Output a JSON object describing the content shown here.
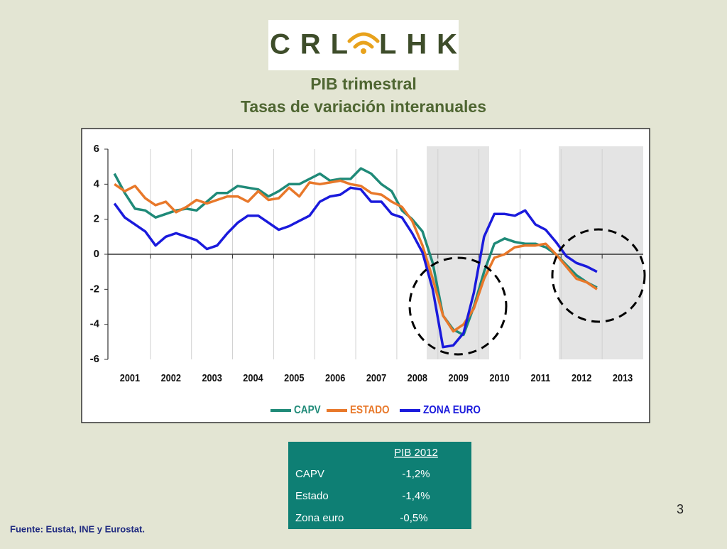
{
  "logo": [
    "CRL",
    "LHK"
  ],
  "chart_data": {
    "type": "line",
    "title": "PIB trimestral",
    "subtitle": "Tasas de variación interanuales",
    "categories": [
      null,
      "2001",
      null,
      null,
      null,
      "2002",
      null,
      null,
      null,
      "2003",
      null,
      null,
      null,
      "2004",
      null,
      null,
      null,
      "2005",
      null,
      null,
      null,
      "2006",
      null,
      null,
      null,
      "2007",
      null,
      null,
      null,
      "2008",
      null,
      null,
      null,
      "2009",
      null,
      null,
      null,
      "2010",
      null,
      null,
      null,
      "2011",
      null,
      null,
      null,
      "2012",
      null,
      null,
      null,
      "2013",
      null,
      null
    ],
    "series": [
      {
        "name": "CAPV",
        "color": "#1f8a78",
        "values": [
          4.6,
          3.5,
          2.6,
          2.5,
          2.1,
          2.3,
          2.5,
          2.6,
          2.5,
          3.0,
          3.5,
          3.5,
          3.9,
          3.8,
          3.7,
          3.3,
          3.6,
          4.0,
          4.0,
          4.3,
          4.6,
          4.2,
          4.3,
          4.3,
          4.9,
          4.6,
          4.0,
          3.6,
          2.5,
          2.0,
          1.3,
          -0.5,
          -3.5,
          -4.3,
          -4.6,
          -3.0,
          -1.0,
          0.6,
          0.9,
          0.7,
          0.6,
          0.6,
          0.4,
          0.0,
          -0.6,
          -1.2,
          -1.6,
          -1.9,
          null,
          null,
          null,
          null
        ]
      },
      {
        "name": "ESTADO",
        "color": "#e8782a",
        "values": [
          4.0,
          3.6,
          3.9,
          3.2,
          2.8,
          3.0,
          2.4,
          2.7,
          3.1,
          2.9,
          3.1,
          3.3,
          3.3,
          3.0,
          3.6,
          3.1,
          3.2,
          3.8,
          3.3,
          4.1,
          4.0,
          4.1,
          4.2,
          4.0,
          3.9,
          3.5,
          3.4,
          3.0,
          2.7,
          1.9,
          0.5,
          -1.4,
          -3.5,
          -4.4,
          -4.0,
          -3.1,
          -1.4,
          -0.2,
          0.0,
          0.4,
          0.5,
          0.5,
          0.6,
          0.0,
          -0.7,
          -1.4,
          -1.6,
          -2.0,
          null,
          null,
          null,
          null
        ]
      },
      {
        "name": "ZONA EURO",
        "color": "#1a1adc",
        "values": [
          2.9,
          2.1,
          1.7,
          1.3,
          0.5,
          1.0,
          1.2,
          1.0,
          0.8,
          0.3,
          0.5,
          1.2,
          1.8,
          2.2,
          2.2,
          1.8,
          1.4,
          1.6,
          1.9,
          2.2,
          3.0,
          3.3,
          3.4,
          3.8,
          3.7,
          3.0,
          3.0,
          2.3,
          2.1,
          1.2,
          0.1,
          -2.0,
          -5.3,
          -5.2,
          -4.5,
          -2.2,
          1.0,
          2.3,
          2.3,
          2.2,
          2.5,
          1.7,
          1.4,
          0.7,
          -0.1,
          -0.5,
          -0.7,
          -1.0,
          null,
          null,
          null,
          null
        ]
      }
    ],
    "ylim": [
      -6,
      6
    ],
    "yticks": [
      -6,
      -4,
      -2,
      0,
      2,
      4,
      6
    ],
    "grid": true,
    "legend": "bottom"
  },
  "table": {
    "header": "PIB 2012",
    "rows": [
      [
        "CAPV",
        "-1,2%"
      ],
      [
        "Estado",
        "-1,4%"
      ],
      [
        "Zona euro",
        "-0,5%"
      ]
    ]
  },
  "source": "Fuente: Eustat, INE y Eurostat.",
  "page_number": 3
}
